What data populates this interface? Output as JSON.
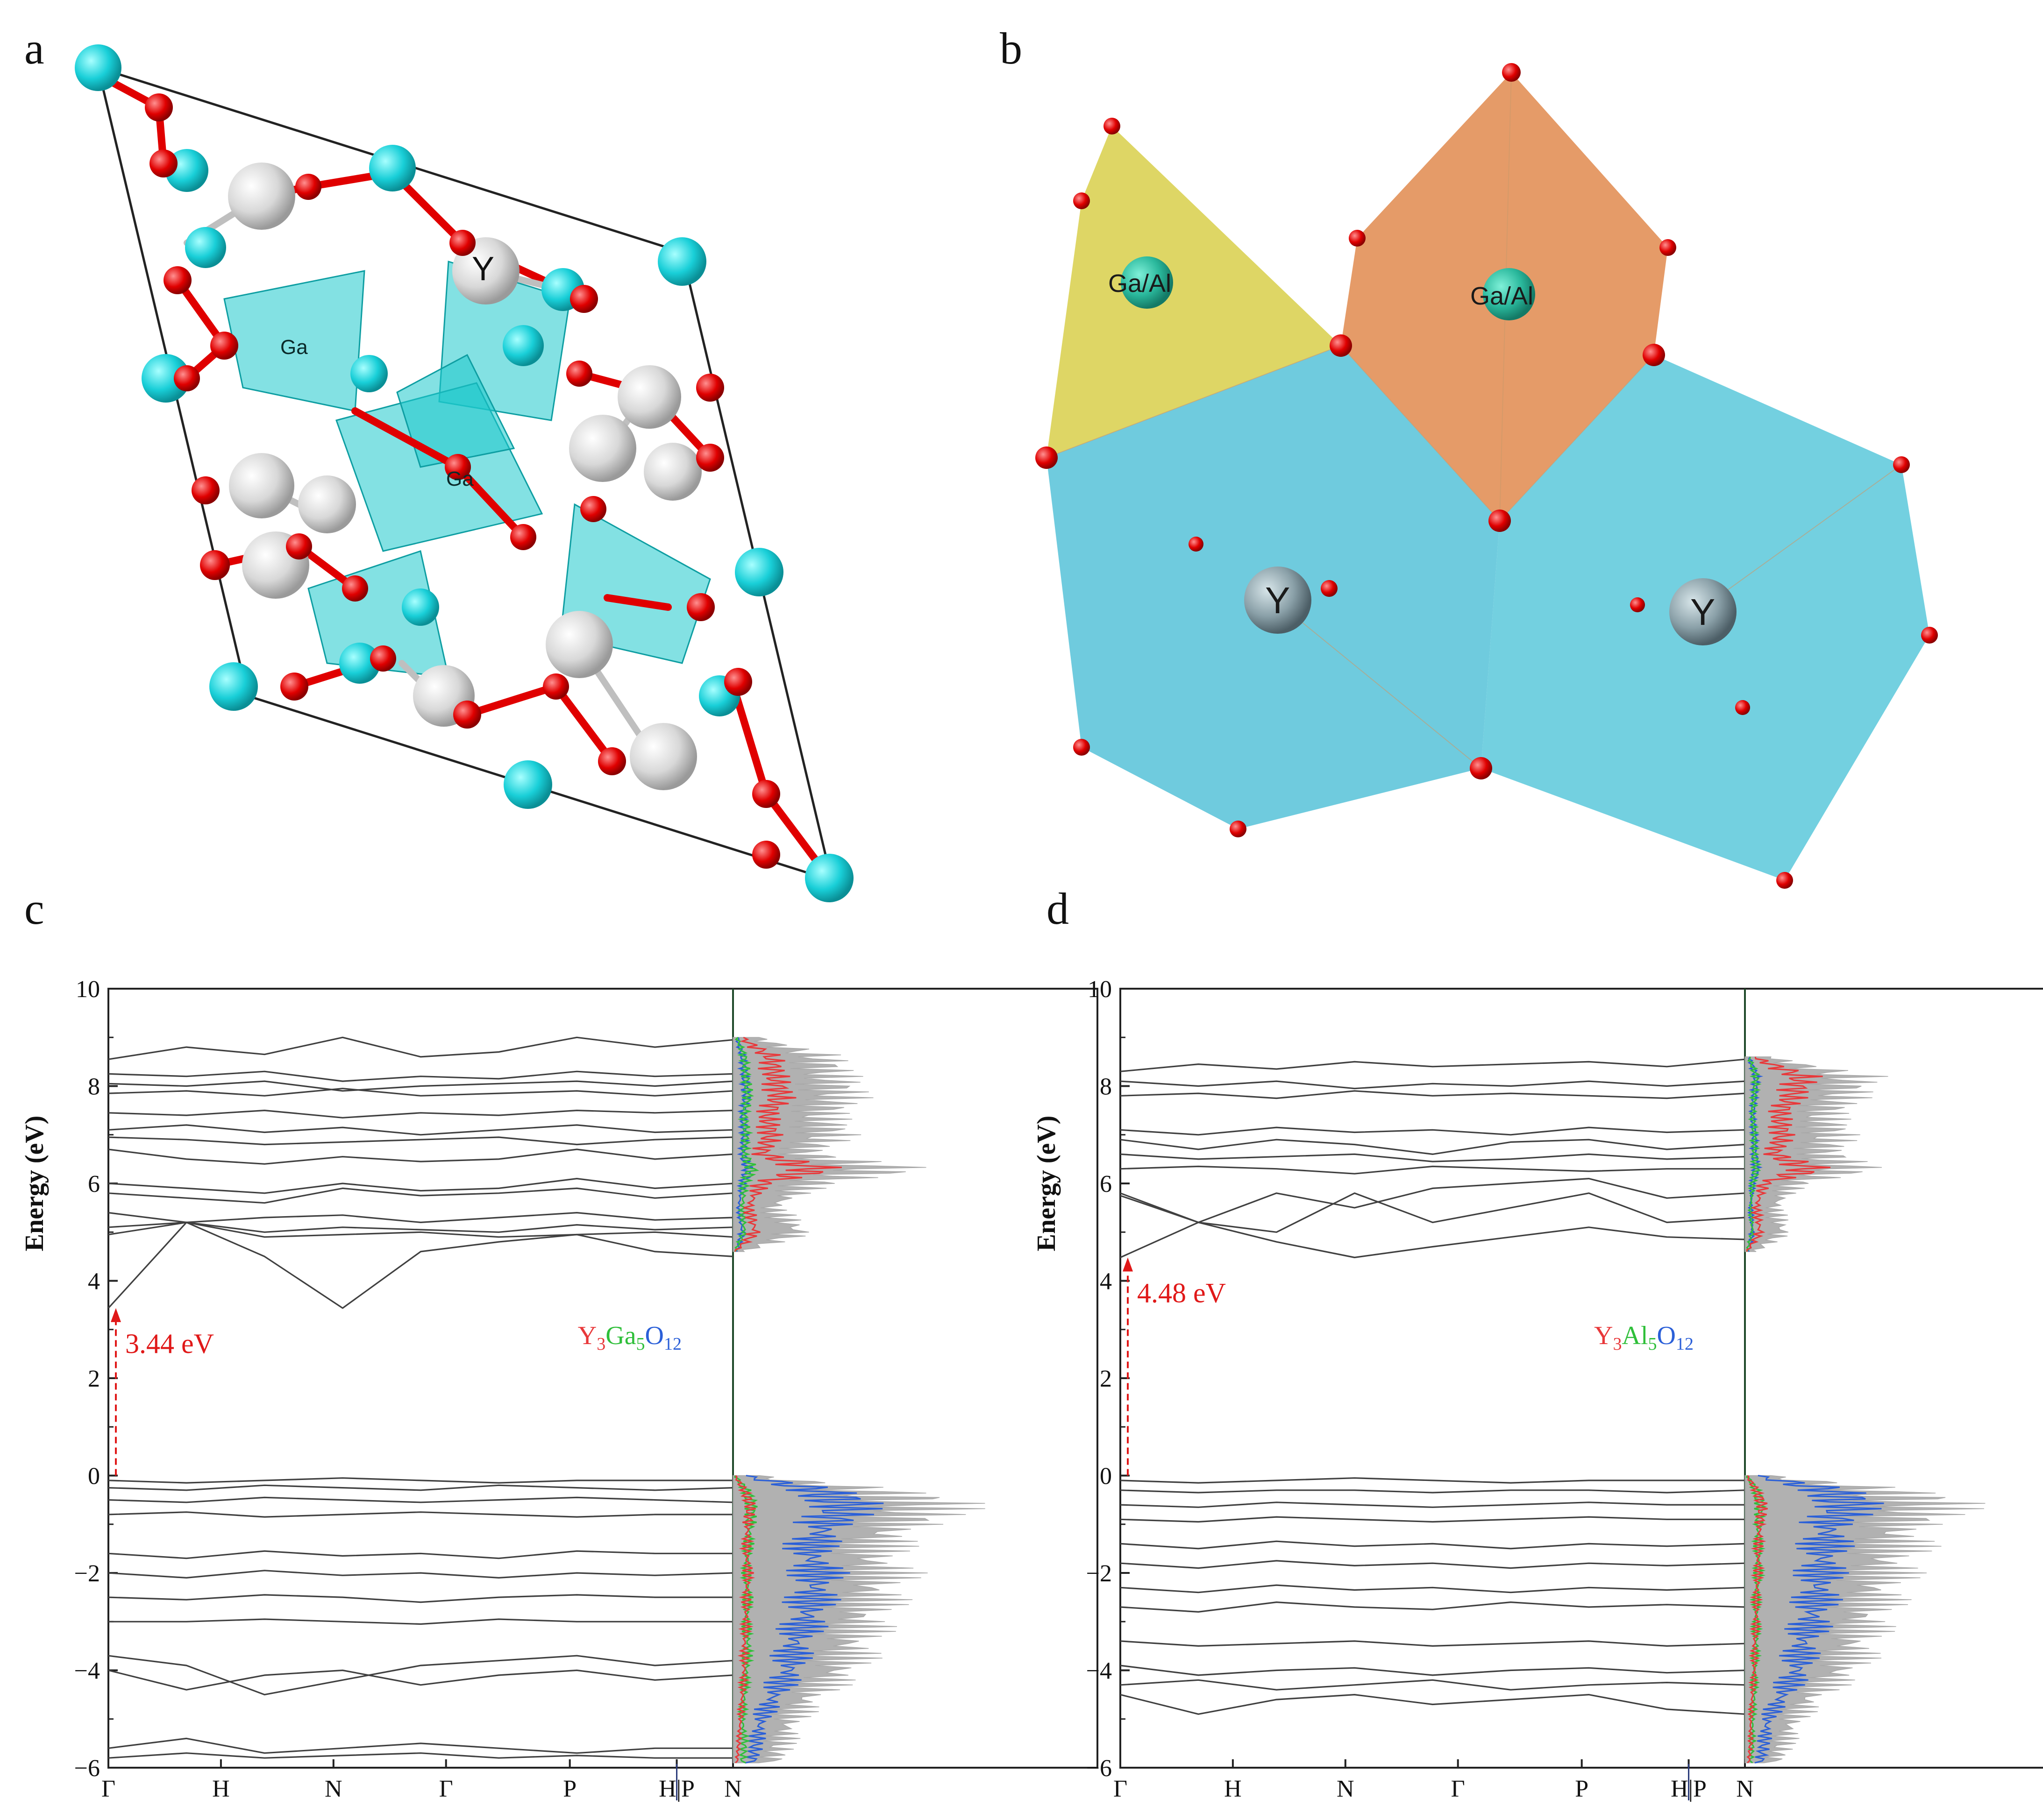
{
  "panels": {
    "a": {
      "letter": "a",
      "labels": {
        "ga_top": "Ga",
        "ga_center": "Ga",
        "y": "Y"
      }
    },
    "b": {
      "letter": "b",
      "labels": {
        "gaal_left": "Ga/Al",
        "gaal_right": "Ga/Al",
        "y_left": "Y",
        "y_right": "Y"
      }
    },
    "c": {
      "letter": "c"
    },
    "d": {
      "letter": "d"
    }
  },
  "colors": {
    "ga_atom": "#19cfd8",
    "o_atom": "#e00000",
    "y_atom": "#dcdcdc",
    "polyhedron_cyan": "#1ec8cc",
    "polyhedron_yellow": "#d8cf4a",
    "polyhedron_orange": "#e08a4e",
    "polyhedron_blue": "#56c2d8",
    "band": "#404040",
    "dos_total": "#a8a8a8",
    "dos_y": "#e8383a",
    "dos_ga": "#2fbf3a",
    "dos_o": "#2a5fd8",
    "gap_arrow": "#e01818"
  },
  "chart_data": [
    {
      "type": "line",
      "panel": "c",
      "title": "",
      "ylabel": "Energy (eV)",
      "xlabel": "",
      "ylim": [
        -6,
        10
      ],
      "yticks": [
        "10",
        "8",
        "6",
        "4",
        "2",
        "0",
        "−2",
        "−4",
        "−6"
      ],
      "ytick_values": [
        10,
        8,
        6,
        4,
        2,
        0,
        -2,
        -4,
        -6
      ],
      "kpath": [
        "Γ",
        "H",
        "N",
        "Γ",
        "P",
        "H|P",
        "N"
      ],
      "kpath_positions": [
        0,
        1,
        2,
        3,
        4.1,
        5.05,
        5.55
      ],
      "band_gap": {
        "value": 3.44,
        "label": "3.44 eV",
        "vbm": 0,
        "cbm": 3.44
      },
      "compound": {
        "parts": [
          "Y",
          "3",
          "Ga",
          "5",
          "O",
          "12"
        ]
      },
      "conduction_bands": [
        [
          8.55,
          8.8,
          8.65,
          9.0,
          8.6,
          8.7,
          9.0,
          8.8,
          8.95
        ],
        [
          8.25,
          8.2,
          8.3,
          8.1,
          8.2,
          8.15,
          8.3,
          8.2,
          8.25
        ],
        [
          8.05,
          8.0,
          8.1,
          7.9,
          8.0,
          8.05,
          8.1,
          8.0,
          8.1
        ],
        [
          7.85,
          7.9,
          7.8,
          7.95,
          7.8,
          7.85,
          7.9,
          7.8,
          7.9
        ],
        [
          7.45,
          7.4,
          7.5,
          7.35,
          7.45,
          7.4,
          7.5,
          7.45,
          7.5
        ],
        [
          7.1,
          7.2,
          7.05,
          7.15,
          7.0,
          7.1,
          7.2,
          7.05,
          7.1
        ],
        [
          6.95,
          6.9,
          6.8,
          6.85,
          6.9,
          6.95,
          6.8,
          6.9,
          6.95
        ],
        [
          6.7,
          6.5,
          6.4,
          6.55,
          6.45,
          6.5,
          6.7,
          6.5,
          6.6
        ],
        [
          6.0,
          5.9,
          5.8,
          6.0,
          5.85,
          5.9,
          6.1,
          5.9,
          6.0
        ],
        [
          5.8,
          5.7,
          5.6,
          5.9,
          5.75,
          5.8,
          5.9,
          5.7,
          5.8
        ],
        [
          5.4,
          5.2,
          5.3,
          5.35,
          5.2,
          5.3,
          5.4,
          5.25,
          5.3
        ],
        [
          5.1,
          5.2,
          5.0,
          5.1,
          5.05,
          5.0,
          5.15,
          5.05,
          5.1
        ],
        [
          4.95,
          5.2,
          4.9,
          4.95,
          5.0,
          4.9,
          4.95,
          5.0,
          4.9
        ],
        [
          3.44,
          5.2,
          4.5,
          3.44,
          4.6,
          4.8,
          4.95,
          4.6,
          4.5
        ]
      ],
      "valence_bands": [
        [
          -0.1,
          -0.15,
          -0.1,
          -0.05,
          -0.1,
          -0.15,
          -0.1,
          -0.1,
          -0.1
        ],
        [
          -0.25,
          -0.3,
          -0.2,
          -0.25,
          -0.3,
          -0.2,
          -0.25,
          -0.3,
          -0.25
        ],
        [
          -0.5,
          -0.55,
          -0.45,
          -0.5,
          -0.55,
          -0.5,
          -0.45,
          -0.5,
          -0.55
        ],
        [
          -0.8,
          -0.75,
          -0.85,
          -0.8,
          -0.75,
          -0.8,
          -0.85,
          -0.8,
          -0.8
        ],
        [
          -1.6,
          -1.7,
          -1.55,
          -1.65,
          -1.6,
          -1.7,
          -1.55,
          -1.6,
          -1.6
        ],
        [
          -2.0,
          -2.1,
          -1.95,
          -2.05,
          -2.0,
          -2.1,
          -2.0,
          -2.05,
          -2.0
        ],
        [
          -2.5,
          -2.55,
          -2.45,
          -2.5,
          -2.6,
          -2.5,
          -2.45,
          -2.5,
          -2.5
        ],
        [
          -3.0,
          -3.0,
          -2.95,
          -3.0,
          -3.05,
          -2.95,
          -3.0,
          -3.0,
          -3.0
        ],
        [
          -3.7,
          -3.9,
          -4.5,
          -4.2,
          -3.9,
          -3.8,
          -3.7,
          -3.9,
          -3.8
        ],
        [
          -4.0,
          -4.4,
          -4.1,
          -4.0,
          -4.3,
          -4.1,
          -4.0,
          -4.2,
          -4.1
        ],
        [
          -5.6,
          -5.4,
          -5.7,
          -5.6,
          -5.5,
          -5.6,
          -5.7,
          -5.6,
          -5.6
        ],
        [
          -5.8,
          -5.7,
          -5.8,
          -5.75,
          -5.7,
          -5.8,
          -5.75,
          -5.8,
          -5.8
        ]
      ],
      "dos": {
        "energy": [
          -5.9,
          -5.5,
          -5.0,
          -4.5,
          -4.0,
          -3.5,
          -3.0,
          -2.5,
          -2.0,
          -1.5,
          -1.0,
          -0.6,
          -0.3,
          0.0,
          4.6,
          5.0,
          5.5,
          6.0,
          6.3,
          6.6,
          7.0,
          7.4,
          7.8,
          8.2,
          8.6,
          9.0
        ],
        "total": [
          0.2,
          0.25,
          0.3,
          0.4,
          0.55,
          0.6,
          0.65,
          0.7,
          0.75,
          0.7,
          0.85,
          1.0,
          0.7,
          0.1,
          0.05,
          0.35,
          0.2,
          0.4,
          0.8,
          0.35,
          0.5,
          0.45,
          0.55,
          0.5,
          0.45,
          0.1
        ],
        "y": [
          0.02,
          0.03,
          0.04,
          0.05,
          0.06,
          0.06,
          0.07,
          0.07,
          0.08,
          0.07,
          0.08,
          0.09,
          0.06,
          0.01,
          0.01,
          0.12,
          0.08,
          0.15,
          0.45,
          0.15,
          0.2,
          0.18,
          0.25,
          0.22,
          0.2,
          0.04
        ],
        "ga": [
          0.05,
          0.06,
          0.05,
          0.06,
          0.07,
          0.08,
          0.07,
          0.08,
          0.07,
          0.08,
          0.09,
          0.1,
          0.07,
          0.01,
          0.01,
          0.06,
          0.05,
          0.06,
          0.1,
          0.06,
          0.07,
          0.06,
          0.08,
          0.07,
          0.06,
          0.02
        ],
        "o": [
          0.1,
          0.12,
          0.15,
          0.22,
          0.3,
          0.32,
          0.38,
          0.42,
          0.45,
          0.4,
          0.5,
          0.6,
          0.45,
          0.05,
          0.02,
          0.05,
          0.03,
          0.05,
          0.08,
          0.05,
          0.06,
          0.05,
          0.07,
          0.06,
          0.05,
          0.02
        ]
      }
    },
    {
      "type": "line",
      "panel": "d",
      "title": "",
      "ylabel": "Energy (eV)",
      "xlabel": "",
      "ylim": [
        -6,
        10
      ],
      "yticks": [
        "10",
        "8",
        "6",
        "4",
        "2",
        "0",
        "−2",
        "−4",
        "−6"
      ],
      "ytick_values": [
        10,
        8,
        6,
        4,
        2,
        0,
        -2,
        -4,
        -6
      ],
      "kpath": [
        "Γ",
        "H",
        "N",
        "Γ",
        "P",
        "H|P",
        "N"
      ],
      "kpath_positions": [
        0,
        1,
        2,
        3,
        4.1,
        5.05,
        5.55
      ],
      "band_gap": {
        "value": 4.48,
        "label": "4.48 eV",
        "vbm": 0,
        "cbm": 4.48
      },
      "compound": {
        "parts": [
          "Y",
          "3",
          "Al",
          "5",
          "O",
          "12"
        ]
      },
      "conduction_bands": [
        [
          8.3,
          8.45,
          8.35,
          8.5,
          8.4,
          8.45,
          8.5,
          8.4,
          8.55
        ],
        [
          8.1,
          8.0,
          8.1,
          7.95,
          8.05,
          8.0,
          8.1,
          8.0,
          8.1
        ],
        [
          7.8,
          7.85,
          7.75,
          7.9,
          7.8,
          7.85,
          7.8,
          7.75,
          7.85
        ],
        [
          7.1,
          7.0,
          7.15,
          7.05,
          7.1,
          7.0,
          7.15,
          7.05,
          7.1
        ],
        [
          6.9,
          6.7,
          6.9,
          6.8,
          6.6,
          6.85,
          6.9,
          6.7,
          6.8
        ],
        [
          6.6,
          6.5,
          6.55,
          6.6,
          6.45,
          6.5,
          6.6,
          6.5,
          6.55
        ],
        [
          6.3,
          6.35,
          6.3,
          6.2,
          6.35,
          6.3,
          6.25,
          6.3,
          6.3
        ],
        [
          5.8,
          5.2,
          5.8,
          5.5,
          5.9,
          6.0,
          6.1,
          5.7,
          5.8
        ],
        [
          5.75,
          5.2,
          5.0,
          5.8,
          5.2,
          5.5,
          5.8,
          5.2,
          5.3
        ],
        [
          4.48,
          5.2,
          4.8,
          4.48,
          4.7,
          4.9,
          5.1,
          4.9,
          4.85
        ]
      ],
      "valence_bands": [
        [
          -0.1,
          -0.15,
          -0.1,
          -0.05,
          -0.1,
          -0.15,
          -0.1,
          -0.1,
          -0.1
        ],
        [
          -0.3,
          -0.35,
          -0.3,
          -0.3,
          -0.35,
          -0.3,
          -0.3,
          -0.35,
          -0.3
        ],
        [
          -0.6,
          -0.65,
          -0.55,
          -0.6,
          -0.65,
          -0.6,
          -0.55,
          -0.6,
          -0.6
        ],
        [
          -0.9,
          -0.95,
          -0.85,
          -0.9,
          -0.95,
          -0.9,
          -0.85,
          -0.9,
          -0.9
        ],
        [
          -1.4,
          -1.5,
          -1.35,
          -1.45,
          -1.4,
          -1.5,
          -1.4,
          -1.45,
          -1.4
        ],
        [
          -1.8,
          -1.9,
          -1.75,
          -1.85,
          -1.8,
          -1.9,
          -1.8,
          -1.85,
          -1.8
        ],
        [
          -2.3,
          -2.4,
          -2.25,
          -2.35,
          -2.3,
          -2.4,
          -2.3,
          -2.35,
          -2.3
        ],
        [
          -2.7,
          -2.8,
          -2.6,
          -2.7,
          -2.75,
          -2.6,
          -2.7,
          -2.65,
          -2.7
        ],
        [
          -3.4,
          -3.5,
          -3.45,
          -3.4,
          -3.5,
          -3.45,
          -3.4,
          -3.5,
          -3.45
        ],
        [
          -3.9,
          -4.1,
          -4.0,
          -3.95,
          -4.1,
          -4.0,
          -3.95,
          -4.05,
          -4.0
        ],
        [
          -4.3,
          -4.2,
          -4.4,
          -4.3,
          -4.2,
          -4.4,
          -4.3,
          -4.25,
          -4.3
        ],
        [
          -4.5,
          -4.9,
          -4.6,
          -4.5,
          -4.7,
          -4.6,
          -4.5,
          -4.8,
          -4.9
        ]
      ],
      "dos": {
        "energy": [
          -5.9,
          -5.5,
          -5.0,
          -4.5,
          -4.0,
          -3.5,
          -3.0,
          -2.5,
          -2.0,
          -1.5,
          -1.0,
          -0.6,
          -0.3,
          0.0,
          4.6,
          5.0,
          5.5,
          6.0,
          6.3,
          6.6,
          7.0,
          7.4,
          7.8,
          8.2,
          8.6
        ],
        "total": [
          0.15,
          0.2,
          0.25,
          0.35,
          0.5,
          0.55,
          0.6,
          0.65,
          0.7,
          0.75,
          0.8,
          0.95,
          0.7,
          0.1,
          0.05,
          0.2,
          0.15,
          0.25,
          0.55,
          0.4,
          0.45,
          0.4,
          0.5,
          0.55,
          0.1
        ],
        "y": [
          0.02,
          0.03,
          0.03,
          0.04,
          0.05,
          0.05,
          0.06,
          0.06,
          0.07,
          0.07,
          0.08,
          0.09,
          0.06,
          0.01,
          0.01,
          0.08,
          0.06,
          0.1,
          0.35,
          0.15,
          0.2,
          0.18,
          0.25,
          0.3,
          0.04
        ],
        "ga": [
          0.03,
          0.04,
          0.04,
          0.05,
          0.05,
          0.06,
          0.06,
          0.06,
          0.07,
          0.07,
          0.07,
          0.08,
          0.06,
          0.01,
          0.01,
          0.04,
          0.03,
          0.04,
          0.06,
          0.05,
          0.05,
          0.04,
          0.05,
          0.06,
          0.02
        ],
        "o": [
          0.08,
          0.1,
          0.12,
          0.2,
          0.28,
          0.3,
          0.35,
          0.38,
          0.4,
          0.42,
          0.45,
          0.55,
          0.45,
          0.05,
          0.02,
          0.04,
          0.03,
          0.04,
          0.06,
          0.05,
          0.05,
          0.04,
          0.05,
          0.06,
          0.02
        ]
      }
    }
  ]
}
